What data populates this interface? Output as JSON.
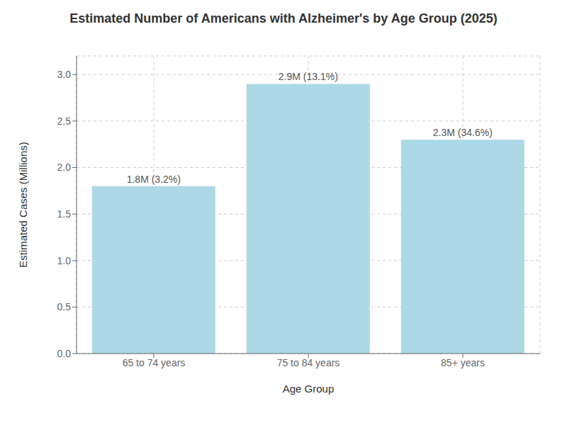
{
  "chart_data": {
    "type": "bar",
    "title": "Estimated Number of Americans with Alzheimer's by Age Group (2025)",
    "xlabel": "Age Group",
    "ylabel": "Estimated Cases (Millions)",
    "categories": [
      "65 to 74 years",
      "75 to 84 years",
      "85+ years"
    ],
    "values": [
      1.8,
      2.9,
      2.3
    ],
    "value_labels": [
      "1.8M (3.2%)",
      "2.9M (13.1%)",
      "2.3M (34.6%)"
    ],
    "data_labels": true,
    "color": "#ADD8E6",
    "ylim": [
      0,
      3.2
    ],
    "yticks": [
      {
        "value": 0.0,
        "label": "0.0"
      },
      0.5,
      {
        "value": 1.0,
        "label": "1.0"
      },
      1.5,
      {
        "value": 2.0,
        "label": "2.0"
      },
      2.5,
      {
        "value": 3.0,
        "label": "3.0"
      }
    ],
    "grid": true
  }
}
